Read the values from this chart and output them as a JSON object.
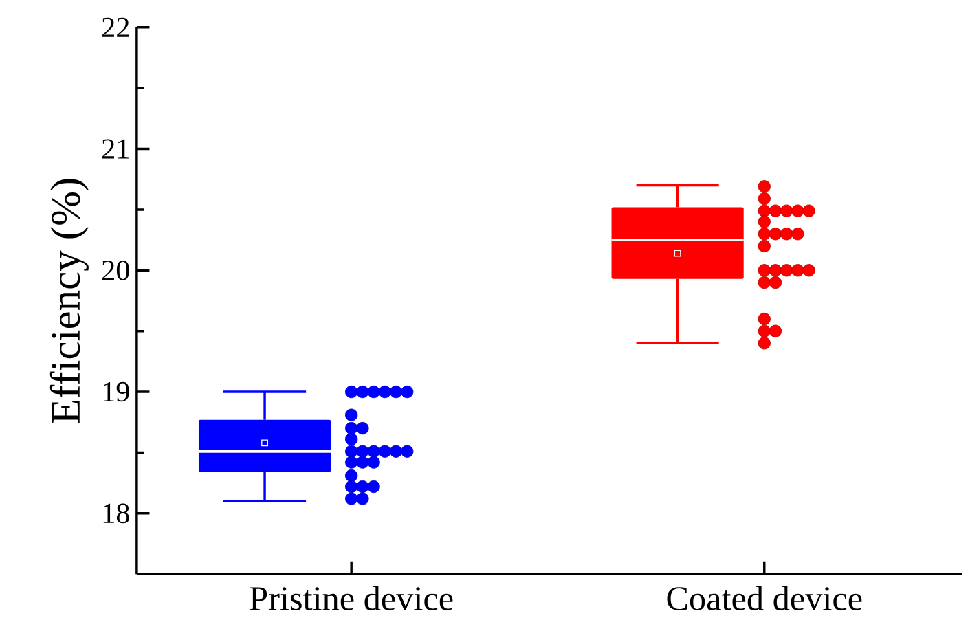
{
  "chart_data": {
    "type": "box",
    "ylabel": "Efficiency (%)",
    "categories": [
      "Pristine device",
      "Coated device"
    ],
    "ylim": [
      17.5,
      22
    ],
    "yticks": [
      18,
      19,
      20,
      21,
      22
    ],
    "series": [
      {
        "colors": [
          "#0000ff",
          "#ff0000"
        ],
        "boxes": [
          {
            "low": 18.1,
            "q1": 18.34,
            "median": 18.51,
            "q3": 18.77,
            "high": 19.0,
            "mean": 18.58
          },
          {
            "low": 19.4,
            "q1": 19.93,
            "median": 20.25,
            "q3": 20.52,
            "high": 20.7,
            "mean": 20.14
          }
        ]
      },
      {
        "type": "scatter",
        "color": "#0000ff",
        "marker": "circle",
        "x": [
          "Pristine device",
          "Pristine device",
          "Pristine device",
          "Pristine device",
          "Pristine device",
          "Pristine device",
          "Pristine device",
          "Pristine device",
          "Pristine device",
          "Pristine device",
          "Pristine device",
          "Pristine device",
          "Pristine device",
          "Pristine device",
          "Pristine device",
          "Pristine device",
          "Pristine device",
          "Pristine device",
          "Pristine device",
          "Pristine device",
          "Pristine device",
          "Pristine device",
          "Pristine device",
          "Pristine device",
          "Pristine device"
        ],
        "values": [
          19.0,
          19.0,
          19.0,
          19.0,
          19.0,
          19.0,
          18.81,
          18.7,
          18.7,
          18.61,
          18.51,
          18.51,
          18.51,
          18.51,
          18.51,
          18.51,
          18.42,
          18.42,
          18.42,
          18.31,
          18.22,
          18.22,
          18.22,
          18.12,
          18.12
        ]
      },
      {
        "type": "scatter",
        "color": "#ff0000",
        "marker": "circle",
        "x": [
          "Coated device",
          "Coated device",
          "Coated device",
          "Coated device",
          "Coated device",
          "Coated device",
          "Coated device",
          "Coated device",
          "Coated device",
          "Coated device",
          "Coated device",
          "Coated device",
          "Coated device",
          "Coated device",
          "Coated device",
          "Coated device",
          "Coated device",
          "Coated device",
          "Coated device",
          "Coated device",
          "Coated device",
          "Coated device",
          "Coated device",
          "Coated device"
        ],
        "values": [
          20.69,
          20.59,
          20.49,
          20.49,
          20.49,
          20.49,
          20.49,
          20.4,
          20.3,
          20.3,
          20.3,
          20.3,
          20.2,
          20.0,
          20.0,
          20.0,
          20.0,
          20.0,
          19.9,
          19.9,
          19.6,
          19.5,
          19.5,
          19.4
        ]
      }
    ]
  }
}
